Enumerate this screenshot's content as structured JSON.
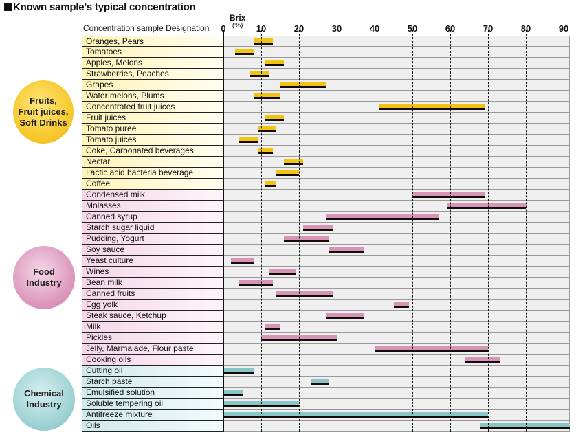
{
  "chart_data": {
    "type": "bar",
    "orientation": "horizontal-range",
    "title": "Known sample's typical concentration",
    "column_header": "Concentration sample Designation",
    "xlabel": "Brix",
    "xunit": "(%)",
    "xlim": [
      0,
      92
    ],
    "xticks": [
      0,
      10,
      20,
      30,
      40,
      50,
      60,
      70,
      80,
      90
    ],
    "grid": true,
    "groups": [
      {
        "name": "Fruits, Fruit juices, Soft Drinks",
        "lines": [
          "Fruits,",
          "Fruit juices,",
          "Soft Drinks"
        ],
        "color": "#f2c412"
      },
      {
        "name": "Food Industry",
        "lines": [
          "Food",
          "Industry"
        ],
        "color": "#d694b6"
      },
      {
        "name": "Chemical Industry",
        "lines": [
          "Chemical",
          "Industry"
        ],
        "color": "#89c6c8"
      }
    ],
    "rows": [
      {
        "label": "Oranges, Pears",
        "group": 0,
        "min": 8,
        "max": 13
      },
      {
        "label": "Tomatoes",
        "group": 0,
        "min": 3,
        "max": 8
      },
      {
        "label": "Apples, Melons",
        "group": 0,
        "min": 11,
        "max": 16
      },
      {
        "label": "Strawberries, Peaches",
        "group": 0,
        "min": 7,
        "max": 12
      },
      {
        "label": "Grapes",
        "group": 0,
        "min": 15,
        "max": 27
      },
      {
        "label": "Water melons, Plums",
        "group": 0,
        "min": 8,
        "max": 15
      },
      {
        "label": "Concentrated fruit juices",
        "group": 0,
        "min": 41,
        "max": 69
      },
      {
        "label": "Fruit juices",
        "group": 0,
        "min": 11,
        "max": 16
      },
      {
        "label": "Tomato puree",
        "group": 0,
        "min": 9,
        "max": 14
      },
      {
        "label": "Tomato juices",
        "group": 0,
        "min": 4,
        "max": 9
      },
      {
        "label": "Coke, Carbonated beverages",
        "group": 0,
        "min": 9,
        "max": 13
      },
      {
        "label": "Nectar",
        "group": 0,
        "min": 16,
        "max": 21
      },
      {
        "label": "Lactic acid bacteria beverage",
        "group": 0,
        "min": 14,
        "max": 20
      },
      {
        "label": "Coffee",
        "group": 0,
        "min": 11,
        "max": 14
      },
      {
        "label": "Condensed milk",
        "group": 1,
        "min": 50,
        "max": 69
      },
      {
        "label": "Molasses",
        "group": 1,
        "min": 59,
        "max": 80
      },
      {
        "label": "Canned syrup",
        "group": 1,
        "min": 27,
        "max": 57
      },
      {
        "label": "Starch sugar liquid",
        "group": 1,
        "min": 21,
        "max": 29
      },
      {
        "label": "Pudding, Yogurt",
        "group": 1,
        "min": 16,
        "max": 28
      },
      {
        "label": "Soy sauce",
        "group": 1,
        "min": 28,
        "max": 37
      },
      {
        "label": "Yeast culture",
        "group": 1,
        "min": 2,
        "max": 8
      },
      {
        "label": "Wines",
        "group": 1,
        "min": 12,
        "max": 19
      },
      {
        "label": "Bean milk",
        "group": 1,
        "min": 4,
        "max": 13
      },
      {
        "label": "Canned fruits",
        "group": 1,
        "min": 14,
        "max": 29
      },
      {
        "label": "Egg yolk",
        "group": 1,
        "min": 45,
        "max": 49
      },
      {
        "label": "Steak sauce, Ketchup",
        "group": 1,
        "min": 27,
        "max": 37
      },
      {
        "label": "Milk",
        "group": 1,
        "min": 11,
        "max": 15
      },
      {
        "label": "Pickles",
        "group": 1,
        "min": 10,
        "max": 30
      },
      {
        "label": "Jelly, Marmalade, Flour paste",
        "group": 1,
        "min": 40,
        "max": 70
      },
      {
        "label": "Cooking oils",
        "group": 1,
        "min": 64,
        "max": 73
      },
      {
        "label": "Cutting oil",
        "group": 2,
        "min": 0,
        "max": 8
      },
      {
        "label": "Starch paste",
        "group": 2,
        "min": 23,
        "max": 28
      },
      {
        "label": "Emulsified solution",
        "group": 2,
        "min": 0,
        "max": 5
      },
      {
        "label": "Soluble tempering oil",
        "group": 2,
        "min": 0,
        "max": 20
      },
      {
        "label": "Antifreeze mixture",
        "group": 2,
        "min": 0,
        "max": 70
      },
      {
        "label": "Oils",
        "group": 2,
        "min": 68,
        "max": 92
      }
    ]
  }
}
